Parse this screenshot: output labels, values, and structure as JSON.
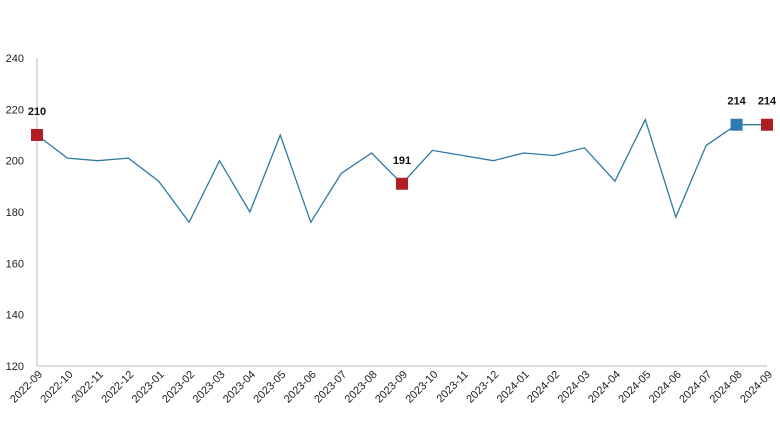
{
  "chart_data": {
    "type": "line",
    "title": "",
    "xlabel": "",
    "ylabel": "",
    "ylim": [
      120,
      240
    ],
    "yticks": [
      120,
      140,
      160,
      180,
      200,
      220,
      240
    ],
    "grid": false,
    "categories": [
      "2022-09",
      "2022-10",
      "2022-11",
      "2022-12",
      "2023-01",
      "2023-02",
      "2023-03",
      "2023-04",
      "2023-05",
      "2023-06",
      "2023-07",
      "2023-08",
      "2023-09",
      "2023-10",
      "2023-11",
      "2023-12",
      "2024-01",
      "2024-02",
      "2024-03",
      "2024-04",
      "2024-05",
      "2024-06",
      "2024-07",
      "2024-08",
      "2024-09"
    ],
    "series": [
      {
        "values": [
          210,
          201,
          200,
          201,
          192,
          176,
          200,
          180,
          210,
          176,
          195,
          203,
          191,
          204,
          202,
          200,
          203,
          202,
          205,
          192,
          216,
          178,
          206,
          214,
          214
        ],
        "line_color": "#2e7aa0"
      }
    ],
    "highlighted_points": [
      {
        "category": "2022-09",
        "value": 210,
        "label": "210",
        "color": "#b01e23"
      },
      {
        "category": "2023-09",
        "value": 191,
        "label": "191",
        "color": "#b01e23"
      },
      {
        "category": "2024-08",
        "value": 214,
        "label": "214",
        "color": "#2e7bb4"
      },
      {
        "category": "2024-09",
        "value": 214,
        "label": "214",
        "color": "#b01e23"
      }
    ],
    "axis_color": "#bbbbbb"
  }
}
